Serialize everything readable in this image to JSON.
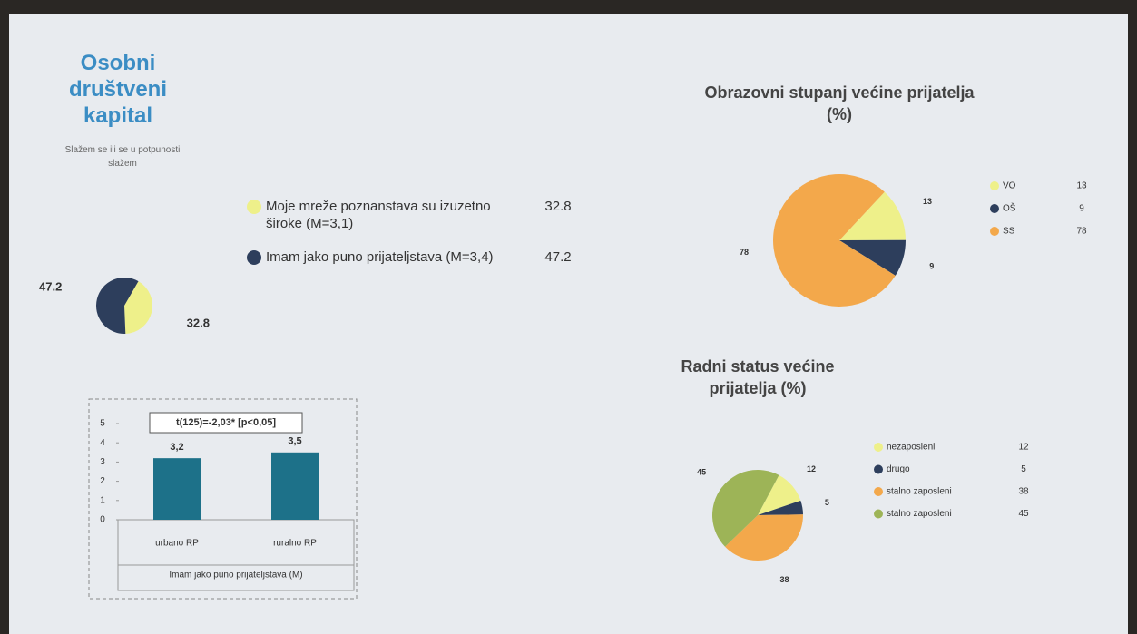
{
  "chart_data": [
    {
      "type": "pie",
      "title": "Osobni društveni kapital",
      "subtitle": "Slažem se ili se u potpunosti slažem",
      "categories": [
        "Moje mreže poznanstava su izuzetno široke (M=3,1)",
        "Imam jako puno prijateljstava (M=3,4)"
      ],
      "values": [
        32.8,
        47.2
      ],
      "colors": [
        "#eef08a",
        "#2d3e5c"
      ]
    },
    {
      "type": "bar",
      "annotation": "t(125)=-2,03* [p<0,05]",
      "xlabel": "Imam jako puno prijateljstava (M)",
      "categories": [
        "urbano RP",
        "ruralno RP"
      ],
      "values": [
        3.2,
        3.5
      ],
      "value_labels": [
        "3,2",
        "3,5"
      ],
      "color": "#1d7189",
      "ylim": [
        0,
        5
      ],
      "yticks": [
        0,
        1,
        2,
        3,
        4,
        5
      ]
    },
    {
      "type": "pie",
      "title": "Obrazovni stupanj većine prijatelja (%)",
      "categories": [
        "VO",
        "OŠ",
        "SS"
      ],
      "values": [
        13,
        9,
        78
      ],
      "colors": [
        "#eef08a",
        "#2d3e5c",
        "#f3a84b"
      ]
    },
    {
      "type": "pie",
      "title": "Radni status većine prijatelja (%)",
      "categories": [
        "nezaposleni",
        "drugo",
        "stalno zaposleni",
        "stalno zaposleni"
      ],
      "values": [
        12,
        5,
        38,
        45
      ],
      "colors": [
        "#eef08a",
        "#2d3e5c",
        "#f3a84b",
        "#9db457"
      ]
    }
  ]
}
